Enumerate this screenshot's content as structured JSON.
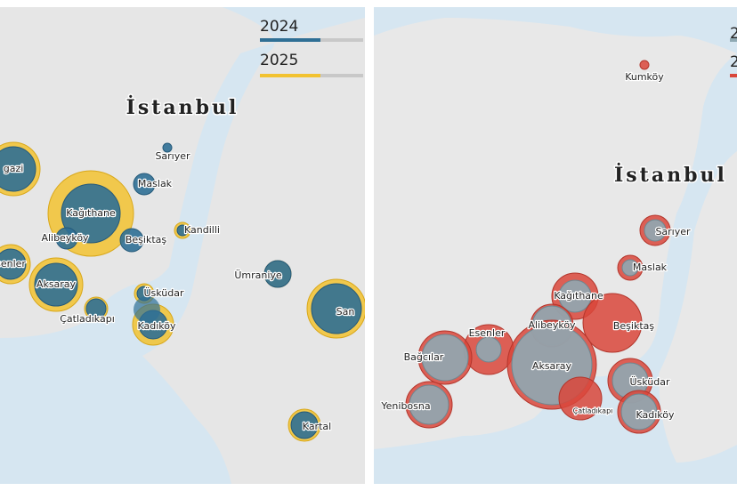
{
  "left": {
    "title": "İstanbul",
    "legend": [
      "2024",
      "2025"
    ],
    "labels": [
      "gazi",
      "Kağıthane",
      "Alibeyköy",
      "Beşiktaş",
      "Maslak",
      "Sarıyer",
      "Kandilli",
      "senler",
      "Aksaray",
      "Üsküdar",
      "Çatladıkapı",
      "Kadıköy",
      "Ümraniye",
      "San",
      "Kartal"
    ]
  },
  "right": {
    "title": "İstanbul",
    "legend": [
      "2",
      "2"
    ],
    "labels": [
      "Kumköy",
      "Sarıyer",
      "Maslak",
      "Kağıthane",
      "Alibeyköy",
      "Beşiktaş",
      "Esenler",
      "Bağcılar",
      "Aksaray",
      "Üsküdar",
      "Çatladıkapı",
      "Kadıköy",
      "Yenibosna"
    ]
  }
}
